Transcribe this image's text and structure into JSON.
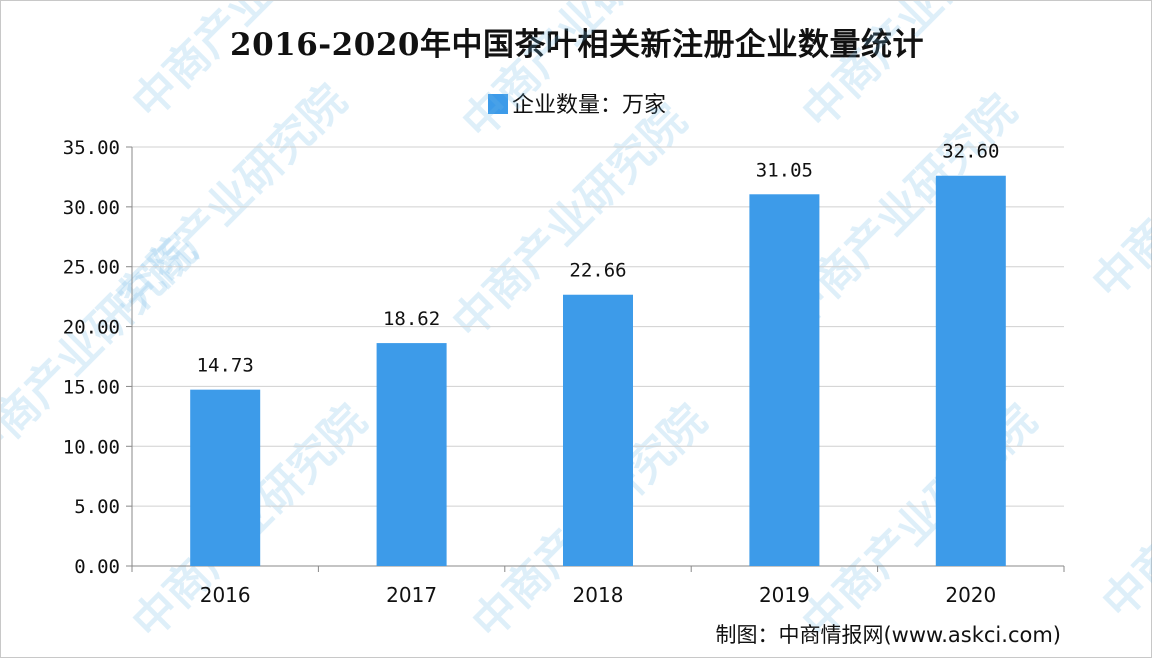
{
  "chart_data": {
    "type": "bar",
    "title": "2016-2020年中国茶叶相关新注册企业数量统计",
    "series": [
      {
        "name": "企业数量：万家",
        "values": [
          14.73,
          18.62,
          22.66,
          31.05,
          32.6
        ],
        "value_labels": [
          "14.73",
          "18.62",
          "22.66",
          "31.05",
          "32.60"
        ]
      }
    ],
    "categories": [
      "2016",
      "2017",
      "2018",
      "2019",
      "2020"
    ],
    "ylim": [
      0,
      35
    ],
    "yticks": [
      0,
      5,
      10,
      15,
      20,
      25,
      30,
      35
    ],
    "ytick_labels": [
      "0.00",
      "5.00",
      "10.00",
      "15.00",
      "20.00",
      "25.00",
      "30.00",
      "35.00"
    ],
    "grid": true,
    "legend_position": "top-center",
    "bar_color": "#3d9be9"
  },
  "source": "制图：中商情报网(www.askci.com)",
  "watermark": "中商产业研究院"
}
